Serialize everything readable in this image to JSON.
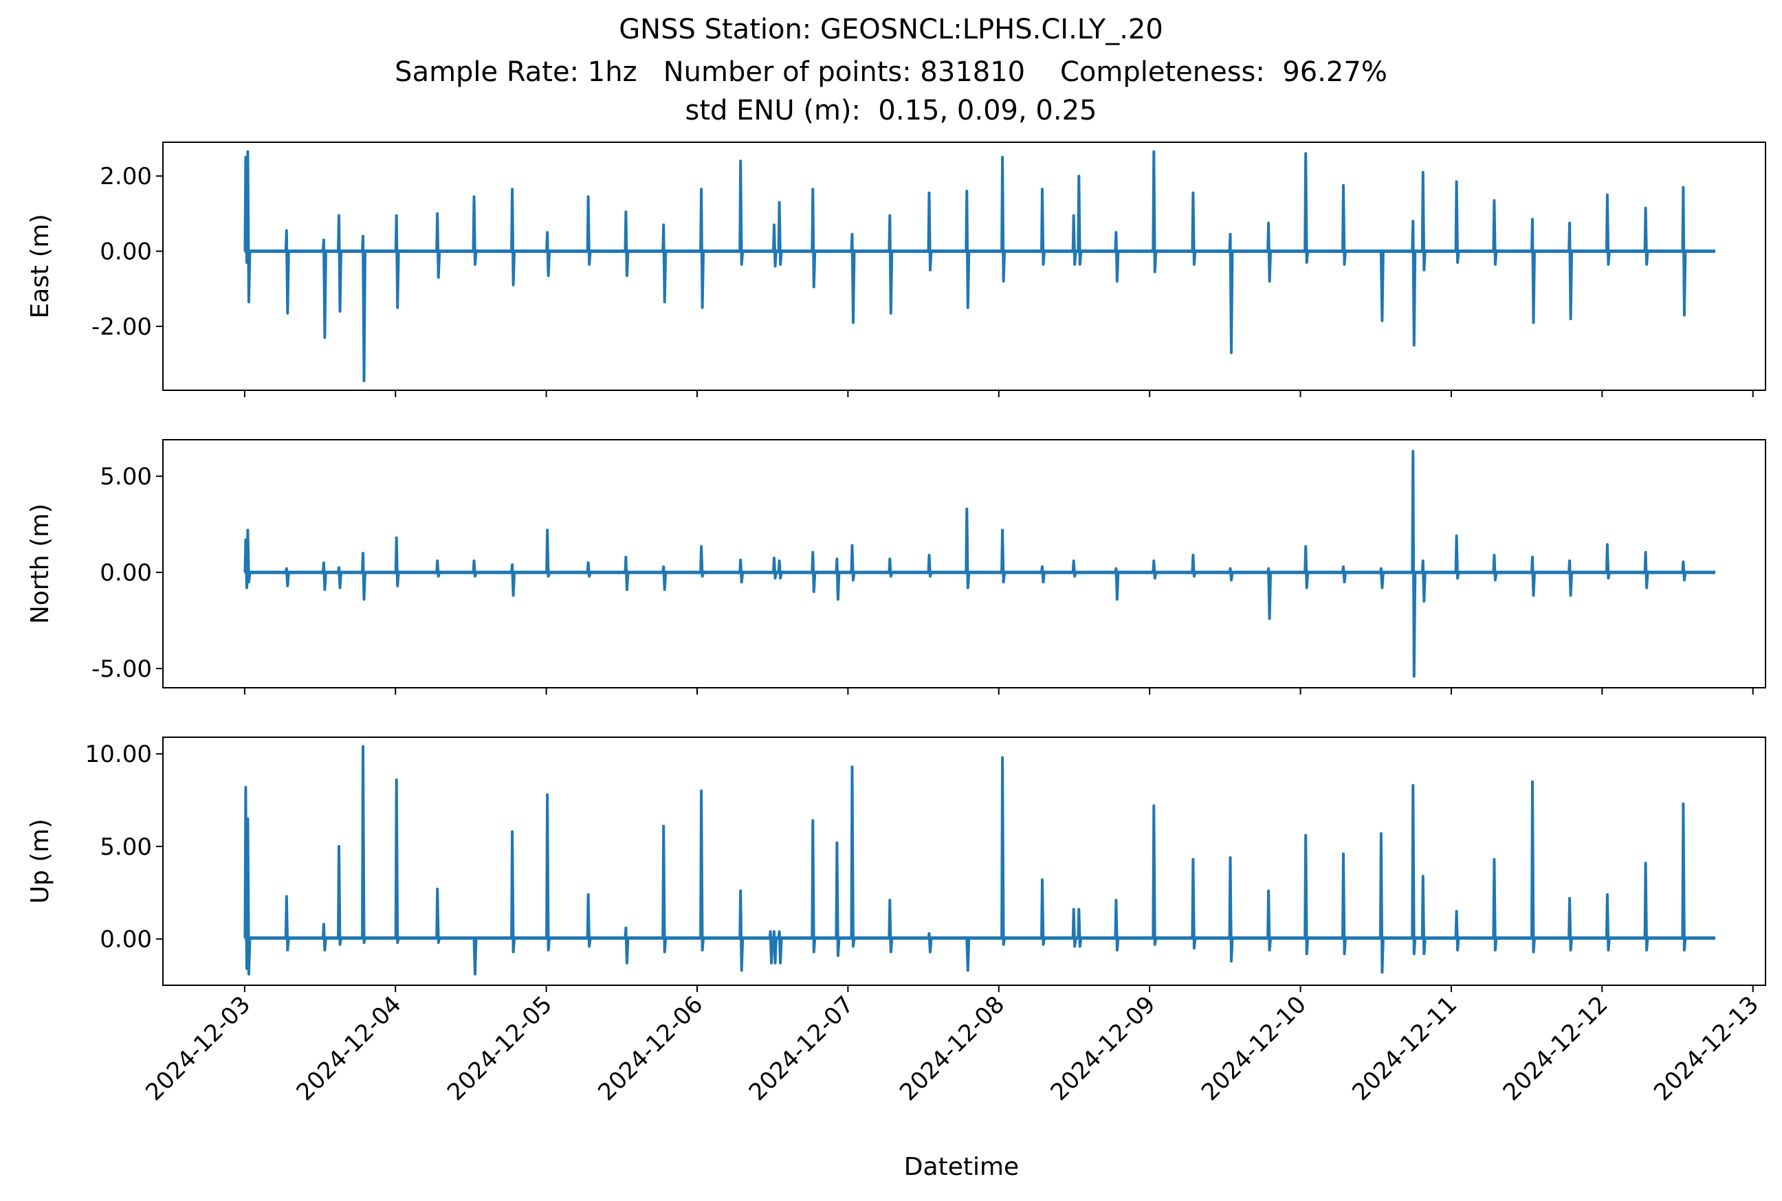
{
  "chart_data": {
    "type": "line",
    "title": "GNSS Station: GEOSNCL:LPHS.CI.LY_.20",
    "subtitle": "Sample Rate: 1hz   Number of points: 831810    Completeness:  96.27%",
    "subtitle2": "std ENU (m):  0.15, 0.09, 0.25",
    "xlabel": "Datetime",
    "xlim": [
      "2024-12-02T11:00",
      "2024-12-13T02:00"
    ],
    "x_ticks": [
      "2024-12-03",
      "2024-12-04",
      "2024-12-05",
      "2024-12-06",
      "2024-12-07",
      "2024-12-08",
      "2024-12-09",
      "2024-12-10",
      "2024-12-11",
      "2024-12-12",
      "2024-12-13"
    ],
    "line_color": "#1f77b4",
    "grid": false,
    "data_start": "2024-12-03T00:00",
    "data_end": "2024-12-12T18:00",
    "panels": [
      {
        "ylabel": "East (m)",
        "ylim": [
          -3.7,
          2.9
        ],
        "y_ticks": [
          2.0,
          0.0,
          -2.0
        ],
        "y_tick_labels": [
          "2.00",
          "0.00",
          "-2.00"
        ],
        "baseline": 0.0,
        "spikes": [
          {
            "t": "2024-12-03T00:10",
            "max": 2.5,
            "min": -0.3
          },
          {
            "t": "2024-12-03T00:30",
            "max": 2.65,
            "min": -1.35
          },
          {
            "t": "2024-12-03T06:40",
            "max": 0.55,
            "min": -1.65
          },
          {
            "t": "2024-12-03T12:35",
            "max": 0.3,
            "min": -2.3
          },
          {
            "t": "2024-12-03T15:00",
            "max": 0.95,
            "min": -1.6
          },
          {
            "t": "2024-12-03T18:50",
            "max": 0.4,
            "min": -3.45
          },
          {
            "t": "2024-12-04T00:10",
            "max": 0.95,
            "min": -1.5
          },
          {
            "t": "2024-12-04T06:40",
            "max": 1.0,
            "min": -0.7
          },
          {
            "t": "2024-12-04T12:30",
            "max": 1.45,
            "min": -0.35
          },
          {
            "t": "2024-12-04T18:35",
            "max": 1.65,
            "min": -0.9
          },
          {
            "t": "2024-12-05T00:10",
            "max": 0.5,
            "min": -0.65
          },
          {
            "t": "2024-12-05T06:40",
            "max": 1.45,
            "min": -0.35
          },
          {
            "t": "2024-12-05T12:40",
            "max": 1.05,
            "min": -0.65
          },
          {
            "t": "2024-12-05T18:40",
            "max": 0.7,
            "min": -1.35
          },
          {
            "t": "2024-12-06T00:40",
            "max": 1.65,
            "min": -1.5
          },
          {
            "t": "2024-12-06T06:55",
            "max": 2.4,
            "min": -0.35
          },
          {
            "t": "2024-12-06T12:15",
            "max": 0.7,
            "min": -0.4
          },
          {
            "t": "2024-12-06T13:05",
            "max": 1.3,
            "min": -0.35
          },
          {
            "t": "2024-12-06T18:25",
            "max": 1.65,
            "min": -0.95
          },
          {
            "t": "2024-12-07T00:40",
            "max": 0.45,
            "min": -1.9
          },
          {
            "t": "2024-12-07T06:40",
            "max": 0.95,
            "min": -1.65
          },
          {
            "t": "2024-12-07T12:55",
            "max": 1.55,
            "min": -0.5
          },
          {
            "t": "2024-12-07T18:55",
            "max": 1.6,
            "min": -1.5
          },
          {
            "t": "2024-12-08T00:35",
            "max": 2.5,
            "min": -0.8
          },
          {
            "t": "2024-12-08T06:55",
            "max": 1.65,
            "min": -0.35
          },
          {
            "t": "2024-12-08T11:55",
            "max": 0.95,
            "min": -0.35
          },
          {
            "t": "2024-12-08T12:45",
            "max": 2.0,
            "min": -0.35
          },
          {
            "t": "2024-12-08T18:40",
            "max": 0.5,
            "min": -0.8
          },
          {
            "t": "2024-12-09T00:40",
            "max": 2.65,
            "min": -0.55
          },
          {
            "t": "2024-12-09T06:55",
            "max": 1.55,
            "min": -0.35
          },
          {
            "t": "2024-12-09T12:50",
            "max": 0.45,
            "min": -2.7
          },
          {
            "t": "2024-12-09T18:55",
            "max": 0.75,
            "min": -0.8
          },
          {
            "t": "2024-12-10T00:50",
            "max": 2.6,
            "min": -0.3
          },
          {
            "t": "2024-12-10T06:50",
            "max": 1.75,
            "min": -0.35
          },
          {
            "t": "2024-12-10T12:50",
            "max": 0.0,
            "min": -1.85
          },
          {
            "t": "2024-12-10T17:55",
            "max": 0.8,
            "min": -2.5
          },
          {
            "t": "2024-12-10T19:30",
            "max": 2.1,
            "min": -0.5
          },
          {
            "t": "2024-12-11T00:50",
            "max": 1.85,
            "min": -0.3
          },
          {
            "t": "2024-12-11T06:50",
            "max": 1.35,
            "min": -0.35
          },
          {
            "t": "2024-12-11T12:55",
            "max": 0.85,
            "min": -1.9
          },
          {
            "t": "2024-12-11T18:50",
            "max": 0.75,
            "min": -1.8
          },
          {
            "t": "2024-12-12T00:50",
            "max": 1.5,
            "min": -0.35
          },
          {
            "t": "2024-12-12T06:55",
            "max": 1.15,
            "min": -0.35
          },
          {
            "t": "2024-12-12T12:55",
            "max": 1.7,
            "min": -1.7
          }
        ]
      },
      {
        "ylabel": "North (m)",
        "ylim": [
          -6.0,
          6.9
        ],
        "y_ticks": [
          5.0,
          0.0,
          -5.0
        ],
        "y_tick_labels": [
          "5.00",
          "0.00",
          "-5.00"
        ],
        "baseline": 0.0,
        "spikes": [
          {
            "t": "2024-12-03T00:10",
            "max": 1.7,
            "min": -0.8
          },
          {
            "t": "2024-12-03T00:30",
            "max": 2.2,
            "min": -0.5
          },
          {
            "t": "2024-12-03T06:40",
            "max": 0.2,
            "min": -0.7
          },
          {
            "t": "2024-12-03T12:35",
            "max": 0.5,
            "min": -0.9
          },
          {
            "t": "2024-12-03T15:00",
            "max": 0.25,
            "min": -0.8
          },
          {
            "t": "2024-12-03T18:50",
            "max": 1.0,
            "min": -1.4
          },
          {
            "t": "2024-12-04T00:10",
            "max": 1.8,
            "min": -0.7
          },
          {
            "t": "2024-12-04T06:40",
            "max": 0.6,
            "min": -0.2
          },
          {
            "t": "2024-12-04T12:30",
            "max": 0.6,
            "min": -0.2
          },
          {
            "t": "2024-12-04T18:35",
            "max": 0.4,
            "min": -1.2
          },
          {
            "t": "2024-12-05T00:10",
            "max": 2.2,
            "min": -0.2
          },
          {
            "t": "2024-12-05T06:40",
            "max": 0.5,
            "min": -0.2
          },
          {
            "t": "2024-12-05T12:40",
            "max": 0.8,
            "min": -0.9
          },
          {
            "t": "2024-12-05T18:40",
            "max": 0.3,
            "min": -0.9
          },
          {
            "t": "2024-12-06T00:40",
            "max": 1.35,
            "min": -0.2
          },
          {
            "t": "2024-12-06T06:55",
            "max": 0.65,
            "min": -0.5
          },
          {
            "t": "2024-12-06T12:15",
            "max": 0.75,
            "min": -0.3
          },
          {
            "t": "2024-12-06T13:05",
            "max": 0.6,
            "min": -0.3
          },
          {
            "t": "2024-12-06T18:25",
            "max": 1.05,
            "min": -1.0
          },
          {
            "t": "2024-12-06T22:15",
            "max": 0.7,
            "min": -1.4
          },
          {
            "t": "2024-12-07T00:40",
            "max": 1.4,
            "min": -0.4
          },
          {
            "t": "2024-12-07T06:40",
            "max": 0.7,
            "min": -0.2
          },
          {
            "t": "2024-12-07T12:55",
            "max": 0.9,
            "min": -0.2
          },
          {
            "t": "2024-12-07T18:55",
            "max": 3.3,
            "min": -0.8
          },
          {
            "t": "2024-12-08T00:35",
            "max": 2.2,
            "min": -0.5
          },
          {
            "t": "2024-12-08T06:55",
            "max": 0.3,
            "min": -0.5
          },
          {
            "t": "2024-12-08T11:55",
            "max": 0.6,
            "min": -0.2
          },
          {
            "t": "2024-12-08T18:40",
            "max": 0.2,
            "min": -1.4
          },
          {
            "t": "2024-12-09T00:40",
            "max": 0.6,
            "min": -0.3
          },
          {
            "t": "2024-12-09T06:55",
            "max": 0.9,
            "min": -0.2
          },
          {
            "t": "2024-12-09T12:50",
            "max": 0.2,
            "min": -0.4
          },
          {
            "t": "2024-12-09T18:55",
            "max": 0.2,
            "min": -2.4
          },
          {
            "t": "2024-12-10T00:50",
            "max": 1.35,
            "min": -0.8
          },
          {
            "t": "2024-12-10T06:50",
            "max": 0.3,
            "min": -0.5
          },
          {
            "t": "2024-12-10T12:50",
            "max": 0.2,
            "min": -0.8
          },
          {
            "t": "2024-12-10T17:55",
            "max": 6.3,
            "min": -5.4
          },
          {
            "t": "2024-12-10T19:30",
            "max": 0.6,
            "min": -1.5
          },
          {
            "t": "2024-12-11T00:50",
            "max": 1.9,
            "min": -0.3
          },
          {
            "t": "2024-12-11T06:50",
            "max": 0.9,
            "min": -0.4
          },
          {
            "t": "2024-12-11T12:55",
            "max": 0.8,
            "min": -1.2
          },
          {
            "t": "2024-12-11T18:50",
            "max": 0.6,
            "min": -1.2
          },
          {
            "t": "2024-12-12T00:50",
            "max": 1.45,
            "min": -0.3
          },
          {
            "t": "2024-12-12T06:55",
            "max": 1.05,
            "min": -0.8
          },
          {
            "t": "2024-12-12T12:55",
            "max": 0.55,
            "min": -0.4
          }
        ]
      },
      {
        "ylabel": "Up (m)",
        "ylim": [
          -2.5,
          10.9
        ],
        "y_ticks": [
          10.0,
          5.0,
          0.0
        ],
        "y_tick_labels": [
          "10.00",
          "5.00",
          "0.00"
        ],
        "baseline": 0.05,
        "spikes": [
          {
            "t": "2024-12-03T00:10",
            "max": 8.2,
            "min": -1.6
          },
          {
            "t": "2024-12-03T00:30",
            "max": 6.5,
            "min": -1.9
          },
          {
            "t": "2024-12-03T06:40",
            "max": 2.3,
            "min": -0.6
          },
          {
            "t": "2024-12-03T12:35",
            "max": 0.8,
            "min": -0.6
          },
          {
            "t": "2024-12-03T15:00",
            "max": 5.0,
            "min": -0.3
          },
          {
            "t": "2024-12-03T18:50",
            "max": 10.4,
            "min": -0.2
          },
          {
            "t": "2024-12-04T00:10",
            "max": 8.6,
            "min": -0.2
          },
          {
            "t": "2024-12-04T06:40",
            "max": 2.7,
            "min": -0.2
          },
          {
            "t": "2024-12-04T12:30",
            "max": 0.0,
            "min": -1.9
          },
          {
            "t": "2024-12-04T18:35",
            "max": 5.8,
            "min": -0.7
          },
          {
            "t": "2024-12-05T00:10",
            "max": 7.8,
            "min": -0.6
          },
          {
            "t": "2024-12-05T06:40",
            "max": 2.4,
            "min": -0.4
          },
          {
            "t": "2024-12-05T12:40",
            "max": 0.6,
            "min": -1.3
          },
          {
            "t": "2024-12-05T18:40",
            "max": 6.1,
            "min": -0.7
          },
          {
            "t": "2024-12-06T00:40",
            "max": 8.0,
            "min": -0.6
          },
          {
            "t": "2024-12-06T06:55",
            "max": 2.6,
            "min": -1.7
          },
          {
            "t": "2024-12-06T11:40",
            "max": 0.4,
            "min": -1.3
          },
          {
            "t": "2024-12-06T12:15",
            "max": 0.4,
            "min": -1.3
          },
          {
            "t": "2024-12-06T13:05",
            "max": 0.4,
            "min": -1.3
          },
          {
            "t": "2024-12-06T18:25",
            "max": 6.4,
            "min": -0.7
          },
          {
            "t": "2024-12-06T22:15",
            "max": 5.2,
            "min": -0.9
          },
          {
            "t": "2024-12-07T00:40",
            "max": 9.3,
            "min": -0.4
          },
          {
            "t": "2024-12-07T06:40",
            "max": 2.1,
            "min": -0.7
          },
          {
            "t": "2024-12-07T12:55",
            "max": 0.3,
            "min": -0.7
          },
          {
            "t": "2024-12-07T18:55",
            "max": 0.0,
            "min": -1.7
          },
          {
            "t": "2024-12-08T00:35",
            "max": 9.8,
            "min": -0.3
          },
          {
            "t": "2024-12-08T06:55",
            "max": 3.2,
            "min": -0.3
          },
          {
            "t": "2024-12-08T11:55",
            "max": 1.6,
            "min": -0.4
          },
          {
            "t": "2024-12-08T12:45",
            "max": 1.6,
            "min": -0.4
          },
          {
            "t": "2024-12-08T18:40",
            "max": 2.1,
            "min": -0.6
          },
          {
            "t": "2024-12-09T00:40",
            "max": 7.2,
            "min": -0.3
          },
          {
            "t": "2024-12-09T06:55",
            "max": 4.3,
            "min": -0.5
          },
          {
            "t": "2024-12-09T12:50",
            "max": 4.4,
            "min": -1.2
          },
          {
            "t": "2024-12-09T18:55",
            "max": 2.6,
            "min": -0.6
          },
          {
            "t": "2024-12-10T00:50",
            "max": 5.6,
            "min": -0.8
          },
          {
            "t": "2024-12-10T06:50",
            "max": 4.6,
            "min": -0.8
          },
          {
            "t": "2024-12-10T12:50",
            "max": 5.7,
            "min": -1.8
          },
          {
            "t": "2024-12-10T17:55",
            "max": 8.3,
            "min": -0.8
          },
          {
            "t": "2024-12-10T19:30",
            "max": 3.4,
            "min": -0.8
          },
          {
            "t": "2024-12-11T00:50",
            "max": 1.5,
            "min": -0.6
          },
          {
            "t": "2024-12-11T06:50",
            "max": 4.3,
            "min": -0.6
          },
          {
            "t": "2024-12-11T12:55",
            "max": 8.5,
            "min": -0.7
          },
          {
            "t": "2024-12-11T18:50",
            "max": 2.2,
            "min": -0.6
          },
          {
            "t": "2024-12-12T00:50",
            "max": 2.4,
            "min": -0.6
          },
          {
            "t": "2024-12-12T06:55",
            "max": 4.1,
            "min": -0.6
          },
          {
            "t": "2024-12-12T12:55",
            "max": 7.3,
            "min": -0.6
          }
        ]
      }
    ]
  }
}
